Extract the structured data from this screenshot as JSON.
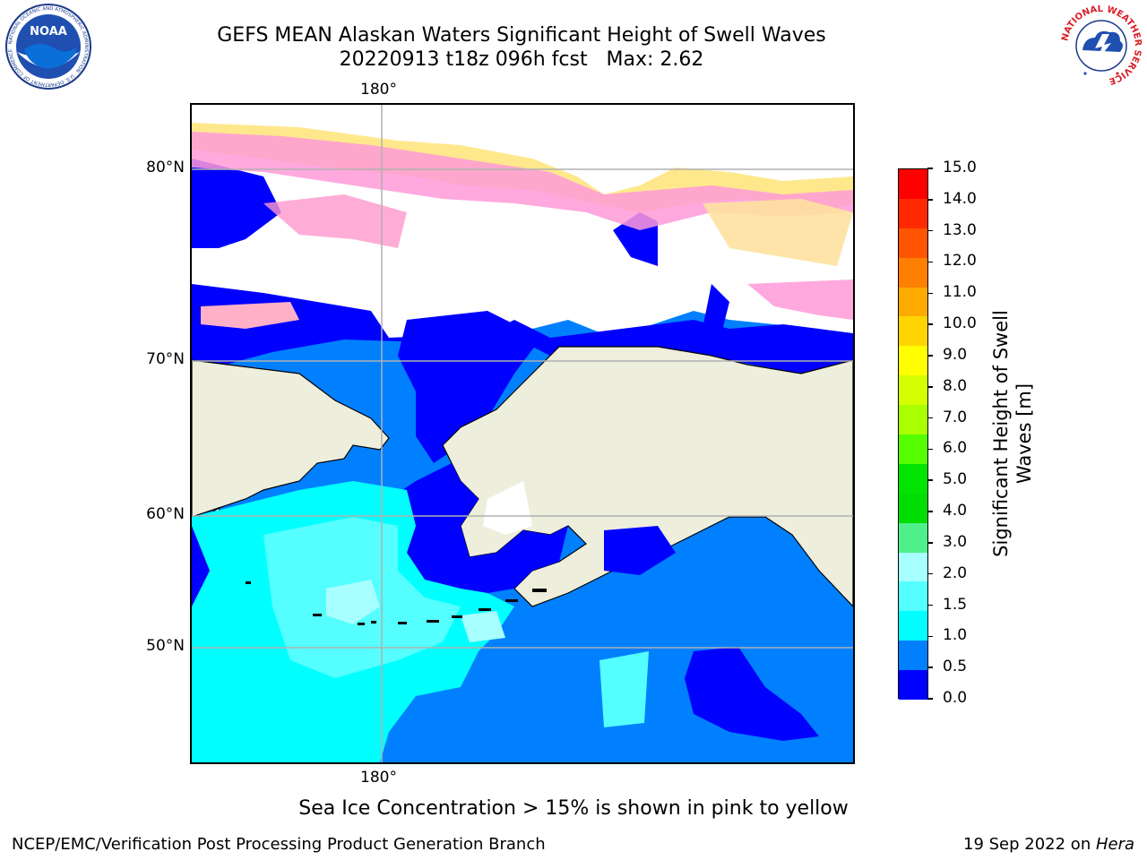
{
  "title": {
    "line1": "GEFS MEAN Alaskan Waters Significant Height of Swell Waves",
    "line2": "20220913 t18z 096h fcst   Max: 2.62"
  },
  "logos": {
    "left": "NOAA",
    "left_ring": "NATIONAL OCEANIC AND ATMOSPHERIC ADMINISTRATION · U.S. DEPARTMENT OF COMMERCE",
    "right_ring": "NATIONAL WEATHER SERVICE"
  },
  "map": {
    "lon_label_top": "180°",
    "lon_label_bottom": "180°",
    "lat_labels": [
      "80°N",
      "70°N",
      "60°N",
      "50°N"
    ],
    "colors": {
      "land": "#eeeedd",
      "no_data": "#ffffff",
      "grid": "#b0b0b0",
      "coast": "#000000",
      "ice_pink": "#ff66dd",
      "ice_yellow": "#ffe680"
    }
  },
  "colorbar": {
    "title": "Significant Height of Swell Waves [m]",
    "tick_labels": [
      "15.0",
      "14.0",
      "13.0",
      "12.0",
      "11.0",
      "10.0",
      "9.0",
      "8.0",
      "7.0",
      "6.0",
      "5.0",
      "4.0",
      "3.0",
      "2.0",
      "1.5",
      "1.0",
      "0.5",
      "0.0"
    ],
    "colors_top_to_bottom": [
      "#ff0000",
      "#ff2a00",
      "#ff5500",
      "#ff8000",
      "#ffaa00",
      "#ffd400",
      "#ffff00",
      "#d4ff00",
      "#aaff00",
      "#55ff00",
      "#00e400",
      "#00dd00",
      "#4ff08a",
      "#a8ffff",
      "#55ffff",
      "#00ffff",
      "#0080ff",
      "#0000ff"
    ]
  },
  "note": "Sea Ice Concentration > 15% is shown in pink to yellow",
  "footer": {
    "left": "NCEP/EMC/Verification Post Processing Product Generation Branch",
    "right_date": "19 Sep 2022 on ",
    "right_host": "Hera"
  }
}
